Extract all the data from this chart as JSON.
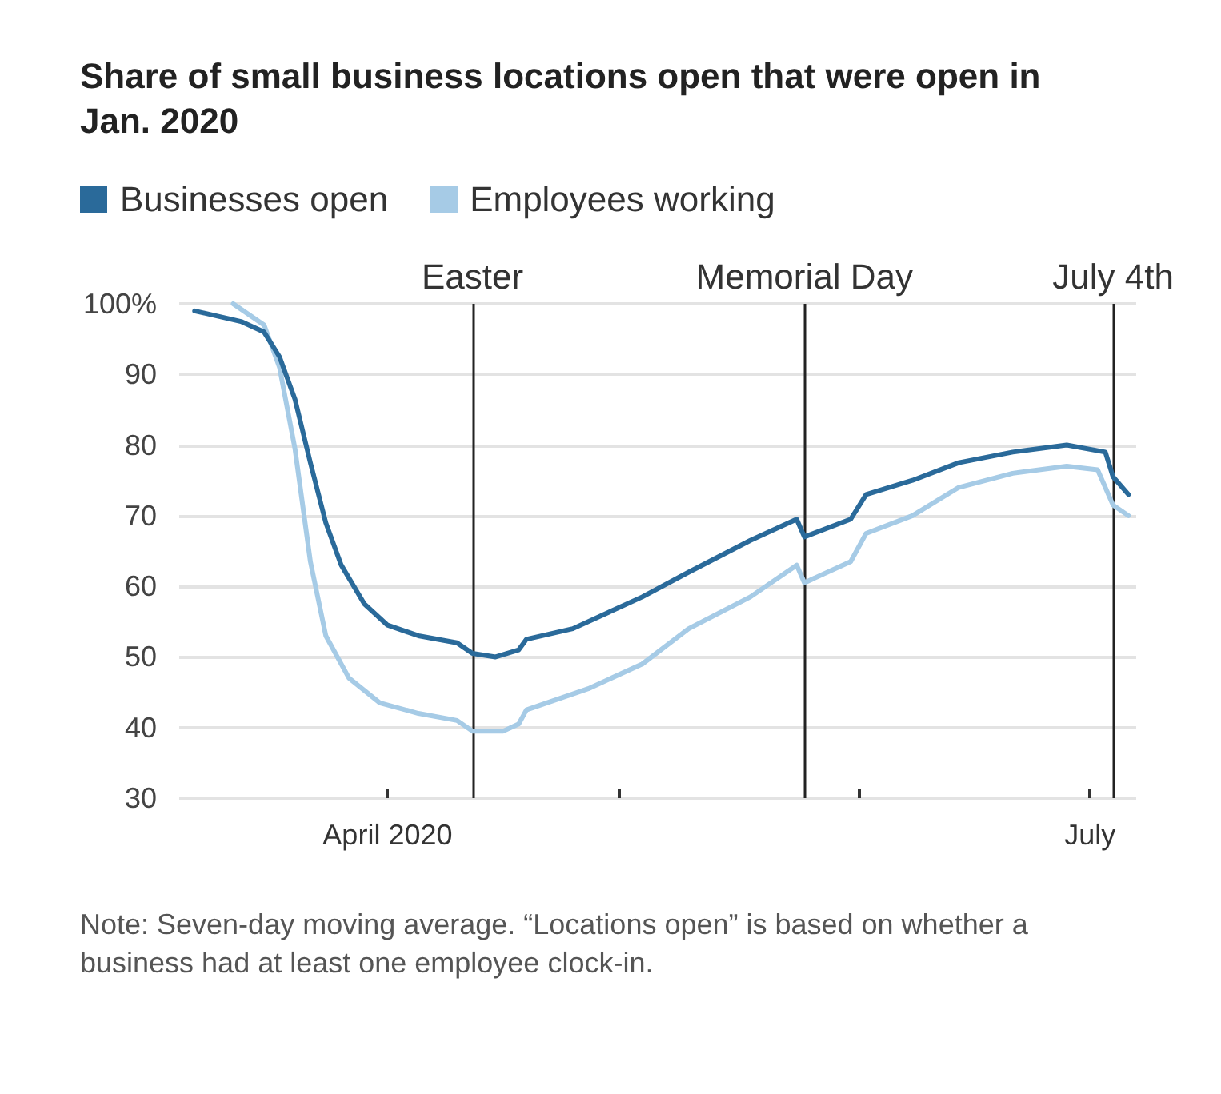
{
  "chart_data": {
    "type": "line",
    "title": "Share of small business locations open that were open in Jan. 2020",
    "series": [
      {
        "name": "Businesses open",
        "color": "#2a6a9a",
        "x": [
          "2020-03-07",
          "2020-03-13",
          "2020-03-16",
          "2020-03-18",
          "2020-03-20",
          "2020-03-22",
          "2020-03-24",
          "2020-03-26",
          "2020-03-29",
          "2020-04-01",
          "2020-04-05",
          "2020-04-10",
          "2020-04-12",
          "2020-04-15",
          "2020-04-18",
          "2020-04-19",
          "2020-04-25",
          "2020-04-30",
          "2020-05-04",
          "2020-05-10",
          "2020-05-18",
          "2020-05-24",
          "2020-05-25",
          "2020-05-31",
          "2020-06-02",
          "2020-06-08",
          "2020-06-14",
          "2020-06-21",
          "2020-06-28",
          "2020-07-03",
          "2020-07-04",
          "2020-07-06"
        ],
        "values": [
          99,
          97.5,
          96,
          92.5,
          86.5,
          77.5,
          69,
          63,
          57.5,
          54.5,
          53,
          52,
          50.5,
          50,
          51,
          52.5,
          54,
          56.5,
          58.5,
          62,
          66.5,
          69.5,
          67,
          69.5,
          73,
          75,
          77.5,
          79,
          80,
          79,
          75.5,
          73
        ]
      },
      {
        "name": "Employees working",
        "color": "#a6cbe6",
        "x": [
          "2020-03-12",
          "2020-03-16",
          "2020-03-18",
          "2020-03-20",
          "2020-03-22",
          "2020-03-24",
          "2020-03-27",
          "2020-03-31",
          "2020-04-05",
          "2020-04-10",
          "2020-04-12",
          "2020-04-16",
          "2020-04-18",
          "2020-04-19",
          "2020-04-27",
          "2020-05-04",
          "2020-05-10",
          "2020-05-18",
          "2020-05-24",
          "2020-05-25",
          "2020-05-31",
          "2020-06-02",
          "2020-06-08",
          "2020-06-14",
          "2020-06-21",
          "2020-06-28",
          "2020-07-02",
          "2020-07-04",
          "2020-07-06"
        ],
        "values": [
          100,
          97,
          91,
          79.5,
          63.5,
          53,
          47,
          43.5,
          42,
          41,
          39.5,
          39.5,
          40.5,
          42.5,
          45.5,
          49,
          54,
          58.5,
          63,
          60.5,
          63.5,
          67.5,
          70,
          74,
          76,
          77,
          76.5,
          71.5,
          70
        ]
      }
    ],
    "xlim": [
      "2020-03-05",
      "2020-07-07"
    ],
    "xticks": [
      {
        "value": "2020-04-01",
        "label": "April 2020"
      },
      {
        "value": "2020-05-01",
        "label": null
      },
      {
        "value": "2020-06-01",
        "label": null
      },
      {
        "value": "2020-07-01",
        "label": "July"
      }
    ],
    "ylim": [
      30,
      100
    ],
    "yticks": [
      {
        "value": 100,
        "label": "100%"
      },
      90,
      80,
      70,
      60,
      50,
      40,
      30
    ],
    "ref_lines": [
      {
        "axis": "x",
        "value": "2020-04-12",
        "label": "Easter",
        "color": "#222222"
      },
      {
        "axis": "x",
        "value": "2020-05-25",
        "label": "Memorial Day",
        "color": "#222222"
      },
      {
        "axis": "x",
        "value": "2020-07-04",
        "label": "July 4th",
        "color": "#222222"
      }
    ],
    "grid": "y",
    "legend": "top left",
    "marker": "none",
    "line_style": "solid",
    "annotations": [
      "Note: Seven-day moving average. “Locations open” is based on whether a business had at least one employee clock-in."
    ]
  }
}
